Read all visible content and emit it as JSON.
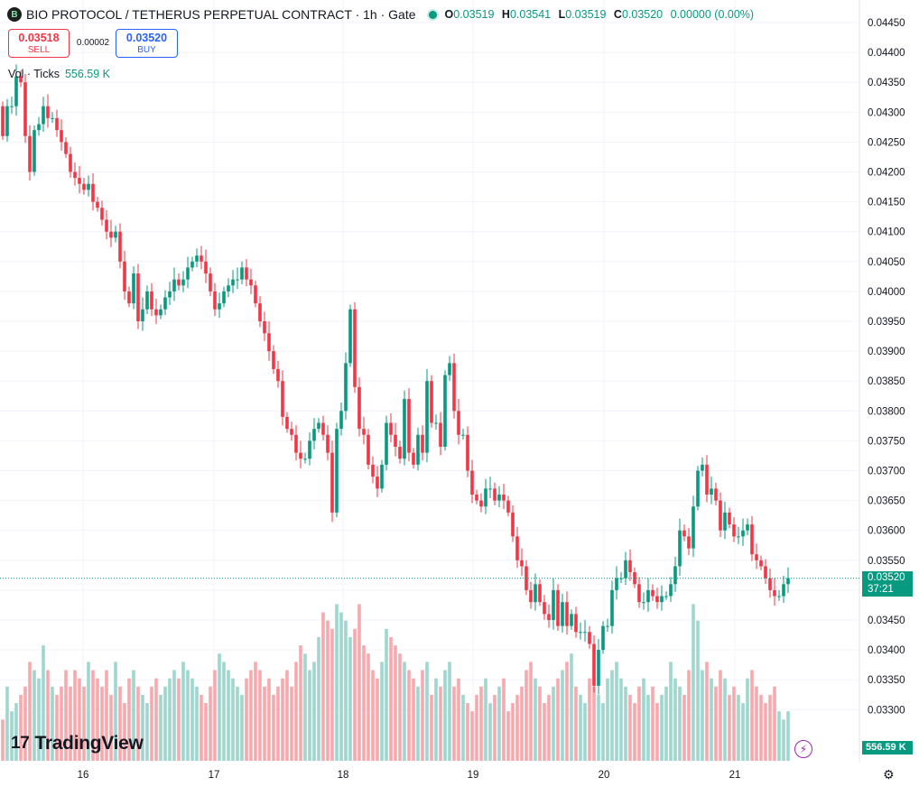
{
  "header": {
    "logo_text": "B",
    "title": "BIO PROTOCOL / TETHERUS PERPETUAL CONTRACT · 1h · Gate",
    "open_label": "O",
    "open": "0.03519",
    "high_label": "H",
    "high": "0.03541",
    "low_label": "L",
    "low": "0.03519",
    "close_label": "C",
    "close": "0.03520",
    "change": "0.00000 (0.00%)"
  },
  "trade": {
    "sell_price": "0.03518",
    "sell_label": "SELL",
    "spread": "0.00002",
    "buy_price": "0.03520",
    "buy_label": "BUY"
  },
  "volume_legend": {
    "label": "Vol · Ticks",
    "value": "556.59 K"
  },
  "branding": {
    "logo_mark": "17",
    "name": "TradingView"
  },
  "price_tag": {
    "price": "0.03520",
    "countdown": "37:21"
  },
  "volume_tag": "556.59 K",
  "icons": {
    "alert": "lightning-icon",
    "settings": "gear-icon"
  },
  "colors": {
    "up": "#089981",
    "down": "#f23645",
    "up_vol": "#9fd6cf",
    "down_vol": "#f7a9ad",
    "grid": "#f0f3fa"
  },
  "chart_data": {
    "type": "candlestick",
    "interval": "1h",
    "y_ticks": [
      "0.04450",
      "0.04400",
      "0.04350",
      "0.04300",
      "0.04250",
      "0.04200",
      "0.04150",
      "0.04100",
      "0.04050",
      "0.04000",
      "0.03950",
      "0.03900",
      "0.03850",
      "0.03800",
      "0.03750",
      "0.03700",
      "0.03650",
      "0.03600",
      "0.03550",
      "0.03500",
      "0.03450",
      "0.03400",
      "0.03350",
      "0.03300"
    ],
    "ylim": [
      0.03245,
      0.0448
    ],
    "x_ticks": [
      "16",
      "17",
      "18",
      "19",
      "20",
      "21"
    ],
    "current_price": 0.0352,
    "closes": [
      0.0426,
      0.0431,
      0.0431,
      0.0436,
      0.0435,
      0.0426,
      0.042,
      0.0427,
      0.0428,
      0.0431,
      0.0429,
      0.0429,
      0.0427,
      0.0425,
      0.0423,
      0.042,
      0.0419,
      0.0418,
      0.0417,
      0.0418,
      0.0415,
      0.0414,
      0.0412,
      0.041,
      0.0409,
      0.041,
      0.0405,
      0.04,
      0.0398,
      0.0403,
      0.0395,
      0.0397,
      0.04,
      0.0397,
      0.0396,
      0.0397,
      0.0399,
      0.04,
      0.0402,
      0.0401,
      0.0402,
      0.0404,
      0.0405,
      0.0406,
      0.0405,
      0.0403,
      0.04,
      0.0397,
      0.0398,
      0.04,
      0.0401,
      0.0402,
      0.0402,
      0.0404,
      0.0402,
      0.0401,
      0.0398,
      0.0395,
      0.0393,
      0.039,
      0.0387,
      0.0385,
      0.0379,
      0.0377,
      0.0376,
      0.0373,
      0.0372,
      0.0372,
      0.0375,
      0.0377,
      0.0378,
      0.0376,
      0.0373,
      0.0363,
      0.0377,
      0.038,
      0.0388,
      0.0397,
      0.0384,
      0.0377,
      0.0376,
      0.0371,
      0.0369,
      0.0367,
      0.0371,
      0.0378,
      0.0376,
      0.0374,
      0.0372,
      0.0382,
      0.0373,
      0.0371,
      0.0376,
      0.0373,
      0.0385,
      0.0378,
      0.0378,
      0.0374,
      0.0386,
      0.0388,
      0.038,
      0.0376,
      0.0376,
      0.037,
      0.0366,
      0.0365,
      0.0364,
      0.0367,
      0.0367,
      0.0365,
      0.0366,
      0.0365,
      0.0363,
      0.0359,
      0.0355,
      0.0354,
      0.035,
      0.0348,
      0.0351,
      0.0348,
      0.0346,
      0.0345,
      0.035,
      0.0344,
      0.0348,
      0.0344,
      0.0346,
      0.0343,
      0.0343,
      0.0343,
      0.0341,
      0.0334,
      0.034,
      0.0344,
      0.0344,
      0.035,
      0.0352,
      0.0352,
      0.0355,
      0.0353,
      0.0351,
      0.0348,
      0.0348,
      0.035,
      0.0349,
      0.0348,
      0.0349,
      0.0349,
      0.0351,
      0.0354,
      0.036,
      0.0359,
      0.0357,
      0.0364,
      0.037,
      0.0371,
      0.0366,
      0.0367,
      0.0365,
      0.036,
      0.0363,
      0.0361,
      0.0359,
      0.0359,
      0.036,
      0.0361,
      0.0356,
      0.0355,
      0.0354,
      0.0352,
      0.035,
      0.0349,
      0.0349,
      0.0351,
      0.0352
    ],
    "volumes_relative": [
      0.25,
      0.45,
      0.3,
      0.35,
      0.4,
      0.45,
      0.6,
      0.55,
      0.5,
      0.7,
      0.55,
      0.45,
      0.4,
      0.45,
      0.55,
      0.45,
      0.55,
      0.5,
      0.45,
      0.6,
      0.55,
      0.5,
      0.45,
      0.55,
      0.4,
      0.6,
      0.45,
      0.35,
      0.5,
      0.55,
      0.45,
      0.4,
      0.35,
      0.45,
      0.5,
      0.4,
      0.45,
      0.5,
      0.55,
      0.5,
      0.6,
      0.55,
      0.5,
      0.45,
      0.4,
      0.35,
      0.45,
      0.55,
      0.65,
      0.6,
      0.55,
      0.5,
      0.45,
      0.4,
      0.5,
      0.55,
      0.6,
      0.55,
      0.45,
      0.5,
      0.4,
      0.45,
      0.5,
      0.55,
      0.45,
      0.6,
      0.7,
      0.65,
      0.55,
      0.6,
      0.75,
      0.9,
      0.85,
      0.8,
      0.95,
      0.9,
      0.85,
      0.75,
      0.8,
      0.95,
      0.7,
      0.65,
      0.55,
      0.5,
      0.6,
      0.8,
      0.75,
      0.7,
      0.65,
      0.6,
      0.55,
      0.5,
      0.45,
      0.55,
      0.6,
      0.4,
      0.5,
      0.45,
      0.55,
      0.6,
      0.45,
      0.5,
      0.4,
      0.35,
      0.3,
      0.4,
      0.45,
      0.5,
      0.35,
      0.4,
      0.45,
      0.5,
      0.3,
      0.35,
      0.4,
      0.45,
      0.55,
      0.6,
      0.5,
      0.45,
      0.35,
      0.4,
      0.45,
      0.5,
      0.55,
      0.6,
      0.65,
      0.45,
      0.4,
      0.35,
      0.5,
      0.45,
      0.4,
      0.35,
      0.5,
      0.55,
      0.6,
      0.5,
      0.45,
      0.4,
      0.35,
      0.45,
      0.5,
      0.4,
      0.45,
      0.35,
      0.4,
      0.45,
      0.6,
      0.5,
      0.45,
      0.4,
      0.55,
      0.95,
      0.85,
      0.55,
      0.6,
      0.5,
      0.45,
      0.55,
      0.5,
      0.4,
      0.45,
      0.4,
      0.35,
      0.5,
      0.55,
      0.45,
      0.4,
      0.35,
      0.4,
      0.45,
      0.3,
      0.25
    ]
  }
}
